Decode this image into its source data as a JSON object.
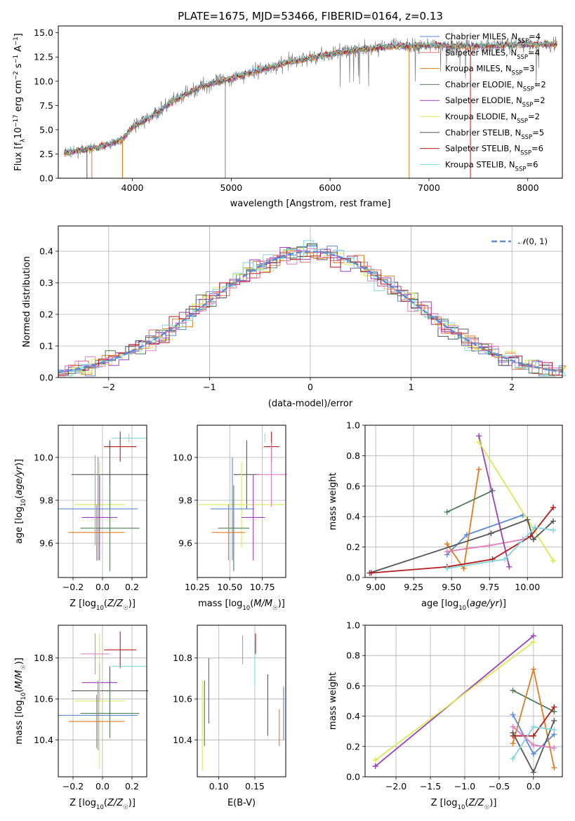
{
  "figure": {
    "title": "PLATE=1675, MJD=53466, FIBERID=0164, z=0.13"
  },
  "colors": {
    "Chabrier MILES": "#5b8bd9",
    "Salpeter MILES": "#e06f6f",
    "Kroupa MILES": "#e07b20",
    "Chabrier ELODIE": "#4f7d55",
    "Salpeter ELODIE": "#9a3fbf",
    "Kroupa ELODIE": "#d8ea50",
    "Chabrier STELIB": "#555555",
    "Salpeter STELIB": "#b51c1c",
    "Kroupa STELIB": "#7fd6dd",
    "pink": "#e27bbf",
    "data": "#808080",
    "normal": "#5b8bd9"
  },
  "chart_data": [
    {
      "type": "line",
      "title": "PLATE=1675, MJD=53466, FIBERID=0164, z=0.13",
      "xlabel": "wavelength [Angstrom, rest frame]",
      "ylabel": {
        "pre": "Flux [f",
        "lambda": "λ",
        "e1": "10",
        "e1sup": "−17",
        "mid": " erg cm",
        "e2sup": "−2",
        "mid2": " s",
        "e3sup": "−1",
        "mid3": " A",
        "e4sup": "−1",
        "post": "]"
      },
      "xlim": [
        3250,
        8350
      ],
      "ylim": [
        0,
        15.7
      ],
      "xticks": [
        "4000",
        "5000",
        "6000",
        "7000",
        "8000"
      ],
      "yticks": [
        "0.0",
        "2.5",
        "5.0",
        "7.5",
        "10.0",
        "12.5",
        "15.0"
      ],
      "grid": false,
      "legend_position": "upper right",
      "legend": [
        {
          "name": "Chabrier MILES",
          "nssp": "4"
        },
        {
          "name": "Salpeter MILES",
          "nssp": "4"
        },
        {
          "name": "Kroupa MILES",
          "nssp": "3"
        },
        {
          "name": "Chabrier ELODIE",
          "nssp": "2"
        },
        {
          "name": "Salpeter ELODIE",
          "nssp": "2"
        },
        {
          "name": "Kroupa ELODIE",
          "nssp": "2"
        },
        {
          "name": "Chabrier STELIB",
          "nssp": "5"
        },
        {
          "name": "Salpeter STELIB",
          "nssp": "6"
        },
        {
          "name": "Kroupa STELIB",
          "nssp": "6"
        }
      ],
      "spectrum_shape": {
        "x": [
          3300,
          3500,
          3700,
          3900,
          4000,
          4200,
          4400,
          4700,
          5000,
          5300,
          5600,
          6000,
          6300,
          6600,
          7000,
          7400,
          8000
        ],
        "y": [
          2.6,
          2.9,
          3.3,
          4.0,
          5.3,
          6.4,
          7.9,
          9.5,
          10.3,
          11.2,
          12.0,
          12.8,
          13.3,
          13.6,
          13.7,
          13.6,
          13.8
        ]
      }
    },
    {
      "type": "step",
      "xlabel": "(data-model)/error",
      "ylabel": "Normed distribution",
      "xlim": [
        -2.5,
        2.5
      ],
      "ylim": [
        0,
        0.48
      ],
      "xticks": [
        "−2",
        "−1",
        "0",
        "1",
        "2"
      ],
      "yticks": [
        "0.0",
        "0.1",
        "0.2",
        "0.3",
        "0.4"
      ],
      "grid": true,
      "legend_position": "upper right",
      "legend": [
        {
          "name": "N(0,1)"
        }
      ]
    },
    {
      "type": "errorbar",
      "xlabel": "Z [log10(Z/Z☉)]",
      "ylabel": "age  [log10(age/yr)]",
      "xlim": [
        -0.3,
        0.3
      ],
      "ylim": [
        9.44,
        10.15
      ],
      "xticks": [
        "−0.2",
        "0.0",
        "0.2"
      ],
      "yticks": [
        "9.6",
        "9.8",
        "10.0"
      ],
      "grid": true,
      "points": [
        {
          "x": 0.18,
          "y": 10.09,
          "xerr": 0.12,
          "yerr": 0.02,
          "c": "Kroupa STELIB"
        },
        {
          "x": 0.12,
          "y": 10.05,
          "xerr": 0.11,
          "yerr": 0.07,
          "c": "Salpeter STELIB"
        },
        {
          "x": 0.05,
          "y": 9.92,
          "xerr": 0.26,
          "yerr": 0.16,
          "c": "Chabrier STELIB"
        },
        {
          "x": -0.02,
          "y": 9.78,
          "xerr": 0.17,
          "yerr": 0.2,
          "c": "Kroupa ELODIE"
        },
        {
          "x": -0.03,
          "y": 9.76,
          "xerr": 0.27,
          "yerr": 0.24,
          "c": "Chabrier MILES"
        },
        {
          "x": -0.02,
          "y": 9.72,
          "xerr": 0.12,
          "yerr": 0.2,
          "c": "Salpeter ELODIE"
        },
        {
          "x": 0.05,
          "y": 9.67,
          "xerr": 0.2,
          "yerr": 0.2,
          "c": "Chabrier ELODIE"
        },
        {
          "x": -0.04,
          "y": 9.65,
          "xerr": 0.19,
          "yerr": 0.13,
          "c": "Kroupa MILES"
        },
        {
          "x": -0.05,
          "y": 9.8,
          "xerr": 0.0,
          "yerr": 0.21,
          "c": "pink"
        }
      ]
    },
    {
      "type": "errorbar",
      "xlabel": "mass [log10(M/M☉)]",
      "ylabel": "",
      "xlim": [
        10.25,
        10.93
      ],
      "ylim": [
        9.44,
        10.15
      ],
      "xticks": [
        "10.25",
        "10.50",
        "10.75"
      ],
      "yticks": [
        "9.6",
        "9.8",
        "10.0"
      ],
      "grid": true,
      "points": [
        {
          "x": 10.77,
          "y": 10.09,
          "xerr": 0.0,
          "yerr": 0.02,
          "c": "Kroupa STELIB"
        },
        {
          "x": 10.82,
          "y": 10.05,
          "xerr": 0.06,
          "yerr": 0.07,
          "c": "Salpeter STELIB"
        },
        {
          "x": 10.63,
          "y": 9.92,
          "xerr": 0.1,
          "yerr": 0.16,
          "c": "Chabrier STELIB"
        },
        {
          "x": 10.59,
          "y": 9.78,
          "xerr": 0.33,
          "yerr": 0.2,
          "c": "Kroupa ELODIE"
        },
        {
          "x": 10.52,
          "y": 9.76,
          "xerr": 0.17,
          "yerr": 0.24,
          "c": "Chabrier MILES"
        },
        {
          "x": 10.68,
          "y": 9.72,
          "xerr": 0.09,
          "yerr": 0.2,
          "c": "Salpeter ELODIE"
        },
        {
          "x": 10.53,
          "y": 9.67,
          "xerr": 0.12,
          "yerr": 0.2,
          "c": "Chabrier ELODIE"
        },
        {
          "x": 10.49,
          "y": 9.65,
          "xerr": 0.13,
          "yerr": 0.13,
          "c": "Kroupa MILES"
        },
        {
          "x": 10.82,
          "y": 9.92,
          "xerr": 0.12,
          "yerr": 0.15,
          "c": "pink"
        }
      ]
    },
    {
      "type": "line",
      "xlabel": "age  [log10(age/yr)]",
      "ylabel": "mass weight",
      "xlim": [
        8.93,
        10.23
      ],
      "ylim": [
        0,
        1.0
      ],
      "xticks": [
        "9.00",
        "9.25",
        "9.50",
        "9.75",
        "10.00"
      ],
      "yticks": [
        "0.0",
        "0.2",
        "0.4",
        "0.6",
        "0.8",
        "1.0"
      ],
      "grid": true,
      "series": [
        {
          "c": "Chabrier MILES",
          "x": [
            9.47,
            9.6,
            9.97
          ],
          "y": [
            0.15,
            0.28,
            0.41
          ]
        },
        {
          "c": "pink",
          "x": [
            9.47,
            9.6,
            9.75,
            9.97
          ],
          "y": [
            0.17,
            0.19,
            0.21,
            0.25
          ]
        },
        {
          "c": "Kroupa MILES",
          "x": [
            9.47,
            9.58,
            9.68
          ],
          "y": [
            0.22,
            0.06,
            0.71
          ]
        },
        {
          "c": "Chabrier ELODIE",
          "x": [
            9.47,
            9.77
          ],
          "y": [
            0.43,
            0.57
          ]
        },
        {
          "c": "Salpeter ELODIE",
          "x": [
            9.68,
            9.88
          ],
          "y": [
            0.93,
            0.07
          ]
        },
        {
          "c": "Kroupa ELODIE",
          "x": [
            9.68,
            10.17
          ],
          "y": [
            0.89,
            0.11
          ]
        },
        {
          "c": "Chabrier STELIB",
          "x": [
            8.96,
            9.76,
            10.0,
            10.04,
            10.17
          ],
          "y": [
            0.03,
            0.29,
            0.38,
            0.25,
            0.37
          ]
        },
        {
          "c": "Salpeter STELIB",
          "x": [
            8.97,
            9.47,
            9.77,
            10.02,
            10.17
          ],
          "y": [
            0.03,
            0.07,
            0.12,
            0.27,
            0.46
          ]
        },
        {
          "c": "Kroupa STELIB",
          "x": [
            9.47,
            9.85,
            10.05,
            10.17
          ],
          "y": [
            0.06,
            0.12,
            0.33,
            0.31
          ]
        }
      ]
    },
    {
      "type": "errorbar",
      "xlabel": "Z [log10(Z/Z☉)]",
      "ylabel": "mass [log10(M/M☉)]",
      "xlim": [
        -0.3,
        0.3
      ],
      "ylim": [
        10.22,
        10.96
      ],
      "xticks": [
        "−0.2",
        "0.0",
        "0.2"
      ],
      "yticks": [
        "10.4",
        "10.6",
        "10.8"
      ],
      "grid": true,
      "points": [
        {
          "x": 0.12,
          "y": 10.84,
          "xerr": 0.11,
          "yerr": 0.09,
          "c": "Salpeter STELIB"
        },
        {
          "x": -0.05,
          "y": 10.82,
          "xerr": 0.1,
          "yerr": 0.1,
          "c": "pink"
        },
        {
          "x": 0.18,
          "y": 10.76,
          "xerr": 0.12,
          "yerr": 0.0,
          "c": "Kroupa STELIB"
        },
        {
          "x": -0.02,
          "y": 10.68,
          "xerr": 0.12,
          "yerr": 0.09,
          "c": "Salpeter ELODIE"
        },
        {
          "x": 0.05,
          "y": 10.64,
          "xerr": 0.26,
          "yerr": 0.12,
          "c": "Chabrier STELIB"
        },
        {
          "x": -0.02,
          "y": 10.59,
          "xerr": 0.17,
          "yerr": 0.33,
          "c": "Kroupa ELODIE"
        },
        {
          "x": 0.05,
          "y": 10.53,
          "xerr": 0.2,
          "yerr": 0.12,
          "c": "Chabrier ELODIE"
        },
        {
          "x": -0.03,
          "y": 10.52,
          "xerr": 0.27,
          "yerr": 0.17,
          "c": "Chabrier MILES"
        },
        {
          "x": -0.04,
          "y": 10.49,
          "xerr": 0.19,
          "yerr": 0.13,
          "c": "Kroupa MILES"
        }
      ]
    },
    {
      "type": "errorbar",
      "xlabel": "E(B-V)",
      "ylabel": "",
      "xlim": [
        0.07,
        0.193
      ],
      "ylim": [
        10.22,
        10.96
      ],
      "xticks": [
        "0.10",
        "0.15"
      ],
      "yticks": [
        "10.4",
        "10.6",
        "10.8"
      ],
      "grid": true,
      "points": [
        {
          "x": 0.077,
          "y": 10.47,
          "xerr": 0,
          "yerr": 0.22,
          "c": "Kroupa ELODIE"
        },
        {
          "x": 0.08,
          "y": 10.53,
          "xerr": 0,
          "yerr": 0.16,
          "c": "Chabrier ELODIE"
        },
        {
          "x": 0.086,
          "y": 10.64,
          "xerr": 0,
          "yerr": 0.16,
          "c": "Salpeter ELODIE"
        },
        {
          "x": 0.133,
          "y": 10.84,
          "xerr": 0,
          "yerr": 0.07,
          "c": "pink"
        },
        {
          "x": 0.15,
          "y": 10.77,
          "xerr": 0,
          "yerr": 0.11,
          "c": "Kroupa STELIB"
        },
        {
          "x": 0.151,
          "y": 10.87,
          "xerr": 0,
          "yerr": 0.05,
          "c": "Salpeter STELIB"
        },
        {
          "x": 0.168,
          "y": 10.57,
          "xerr": 0,
          "yerr": 0.15,
          "c": "Chabrier STELIB"
        },
        {
          "x": 0.184,
          "y": 10.46,
          "xerr": 0,
          "yerr": 0.09,
          "c": "Kroupa MILES"
        },
        {
          "x": 0.19,
          "y": 10.53,
          "xerr": 0,
          "yerr": 0.13,
          "c": "Chabrier MILES"
        }
      ]
    },
    {
      "type": "line",
      "xlabel": "Z [log10(Z/Z☉)]",
      "ylabel": "mass weight",
      "xlim": [
        -2.45,
        0.42
      ],
      "ylim": [
        0,
        1.0
      ],
      "xticks": [
        "−2.0",
        "−1.5",
        "−1.0",
        "−0.5",
        "0.0"
      ],
      "yticks": [
        "0.0",
        "0.2",
        "0.4",
        "0.6",
        "0.8",
        "1.0"
      ],
      "grid": true,
      "series": [
        {
          "c": "Salpeter ELODIE",
          "x": [
            -2.3,
            0.0
          ],
          "y": [
            0.07,
            0.93
          ]
        },
        {
          "c": "Kroupa ELODIE",
          "x": [
            -2.3,
            0.0
          ],
          "y": [
            0.11,
            0.89
          ]
        },
        {
          "c": "Chabrier ELODIE",
          "x": [
            -0.3,
            0.3
          ],
          "y": [
            0.57,
            0.43
          ]
        },
        {
          "c": "Kroupa MILES",
          "x": [
            -0.3,
            0.0,
            0.3
          ],
          "y": [
            0.22,
            0.71,
            0.06
          ]
        },
        {
          "c": "Chabrier MILES",
          "x": [
            -0.3,
            0.0,
            0.3
          ],
          "y": [
            0.41,
            0.15,
            0.28
          ]
        },
        {
          "c": "Salpeter STELIB",
          "x": [
            -0.3,
            0.0,
            0.3
          ],
          "y": [
            0.27,
            0.27,
            0.46
          ]
        },
        {
          "c": "Chabrier STELIB",
          "x": [
            -0.3,
            0.0,
            0.3
          ],
          "y": [
            0.29,
            0.03,
            0.37
          ]
        },
        {
          "c": "Kroupa STELIB",
          "x": [
            -0.3,
            0.0,
            0.3
          ],
          "y": [
            0.12,
            0.33,
            0.31
          ]
        },
        {
          "c": "pink",
          "x": [
            -0.3,
            0.0,
            0.3
          ],
          "y": [
            0.33,
            0.21,
            0.19
          ]
        }
      ]
    }
  ]
}
